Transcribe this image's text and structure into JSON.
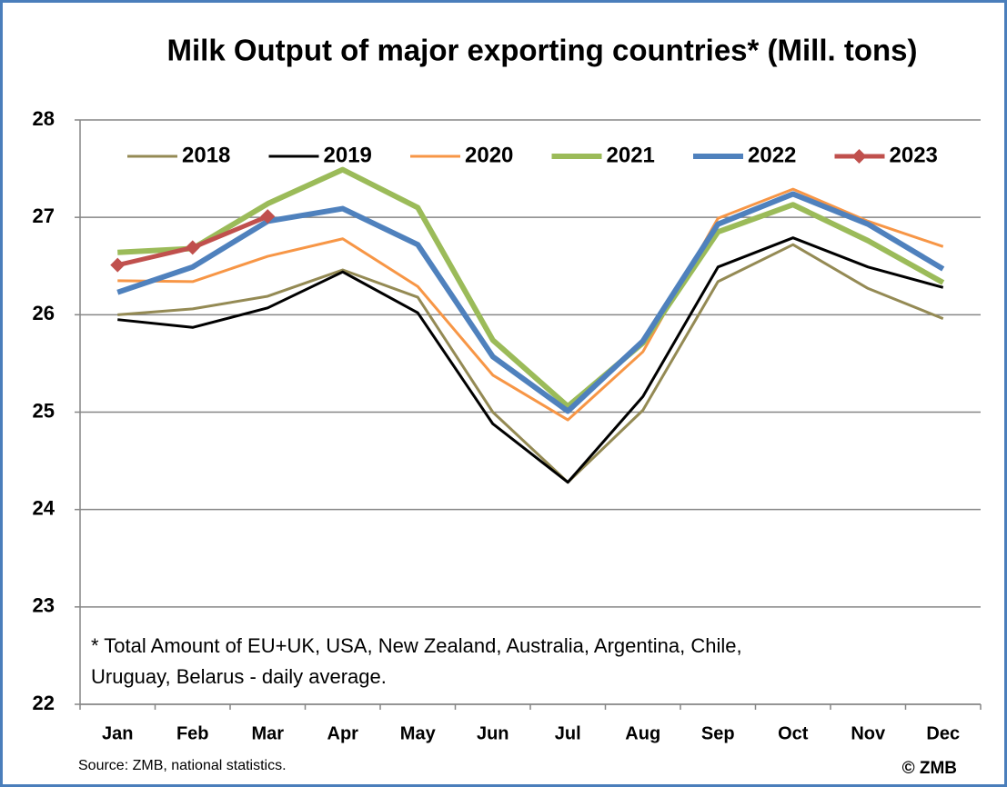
{
  "chart_data": {
    "type": "line",
    "title": "Milk Output of major exporting countries* (Mill. tons)",
    "categories": [
      "Jan",
      "Feb",
      "Mar",
      "Apr",
      "May",
      "Jun",
      "Jul",
      "Aug",
      "Sep",
      "Oct",
      "Nov",
      "Dec"
    ],
    "series": [
      {
        "name": "2018",
        "color": "#948a54",
        "values": [
          26.0,
          26.06,
          26.19,
          26.46,
          26.18,
          25.0,
          24.28,
          25.02,
          26.34,
          26.72,
          26.27,
          25.96
        ]
      },
      {
        "name": "2019",
        "color": "#000000",
        "values": [
          25.95,
          25.87,
          26.07,
          26.44,
          26.02,
          24.88,
          24.28,
          25.16,
          26.49,
          26.79,
          26.49,
          26.28
        ]
      },
      {
        "name": "2020",
        "color": "#f79646",
        "values": [
          26.35,
          26.34,
          26.6,
          26.78,
          26.29,
          25.38,
          24.92,
          25.62,
          26.99,
          27.29,
          26.96,
          26.7
        ]
      },
      {
        "name": "2021",
        "color": "#9bbb59",
        "values": [
          26.64,
          26.68,
          27.14,
          27.49,
          27.1,
          25.74,
          25.06,
          25.71,
          26.85,
          27.13,
          26.76,
          26.33
        ]
      },
      {
        "name": "2022",
        "color": "#4f81bd",
        "values": [
          26.23,
          26.49,
          26.96,
          27.09,
          26.72,
          25.57,
          25.01,
          25.73,
          26.93,
          27.24,
          26.93,
          26.47
        ]
      },
      {
        "name": "2023",
        "color": "#c0504d",
        "values": [
          26.51,
          26.69,
          27.01,
          null,
          null,
          null,
          null,
          null,
          null,
          null,
          null,
          null
        ]
      }
    ],
    "ylim": [
      22,
      28
    ],
    "yticks": [
      22,
      23,
      24,
      25,
      26,
      27,
      28
    ],
    "grid": true,
    "legend": "top",
    "footnote": [
      "* Total Amount of EU+UK, USA, New Zealand, Australia, Argentina, Chile,",
      "Uruguay, Belarus - daily average."
    ],
    "source": "Source: ZMB, national statistics.",
    "copyright": "© ZMB"
  }
}
